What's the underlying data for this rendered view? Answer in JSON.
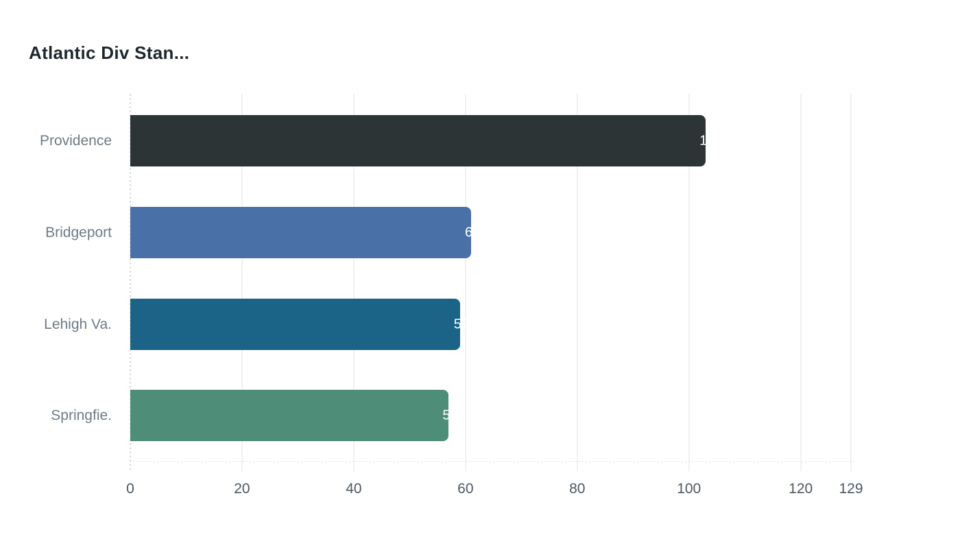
{
  "chart_data": {
    "type": "bar",
    "orientation": "horizontal",
    "title": "Atlantic Div Stan...",
    "categories": [
      "Providence",
      "Bridgeport",
      "Lehigh Va.",
      "Springfie."
    ],
    "values": [
      103,
      61,
      59,
      57
    ],
    "bar_colors": [
      "#2c3436",
      "#4a70a8",
      "#1b6387",
      "#4e8e78"
    ],
    "xlim": [
      0,
      129
    ],
    "x_ticks": [
      "0",
      "20",
      "40",
      "60",
      "80",
      "100",
      "120",
      "129"
    ],
    "x_tick_values": [
      0,
      20,
      40,
      60,
      80,
      100,
      120,
      129
    ],
    "grid": "vertical",
    "legend": "none",
    "colors": {
      "background": "#ffffff",
      "title_text": "#1e272c",
      "category_label_text": "#6e7a84",
      "tick_label_text": "#4d5761",
      "value_label_text": "#ffffff",
      "gridline": "#f1f1f2",
      "zero_axis_dash": "#d9dddf",
      "baseline_dots": "#d6dadb"
    }
  }
}
